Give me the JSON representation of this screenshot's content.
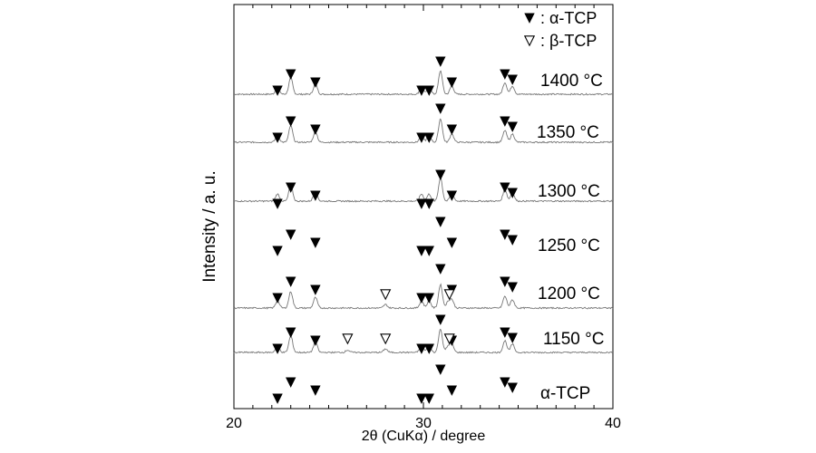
{
  "chart_data": {
    "type": "line",
    "xlabel": "2θ (CuKα) / degree",
    "ylabel": "Intensity / a. u.",
    "xlim": [
      20,
      40
    ],
    "xticks": [
      "20",
      "30",
      "40"
    ],
    "legend": [
      {
        "symbol": "filled-triangle",
        "label": ": α-TCP"
      },
      {
        "symbol": "open-triangle",
        "label": ": β-TCP"
      }
    ],
    "series": [
      {
        "name": "1400 °C",
        "peaks_alpha": [
          22.3,
          23.0,
          24.3,
          29.9,
          30.3,
          30.9,
          31.5,
          34.3,
          34.7
        ],
        "peaks_beta": []
      },
      {
        "name": "1350 °C",
        "peaks_alpha": [
          22.3,
          23.0,
          24.3,
          29.9,
          30.3,
          30.9,
          31.5,
          34.3,
          34.7
        ],
        "peaks_beta": []
      },
      {
        "name": "1300 °C",
        "peaks_alpha": [
          22.3,
          23.0,
          24.3,
          29.9,
          30.3,
          30.9,
          31.5,
          34.3,
          34.7
        ],
        "peaks_beta": []
      },
      {
        "name": "1250 °C",
        "peaks_alpha": [
          22.3,
          23.0,
          24.3,
          29.9,
          30.3,
          30.9,
          31.5,
          34.3,
          34.7
        ],
        "peaks_beta": []
      },
      {
        "name": "1200 °C",
        "peaks_alpha": [
          22.3,
          23.0,
          24.3,
          29.9,
          30.3,
          30.9,
          31.5,
          34.3,
          34.7
        ],
        "peaks_beta": [
          28.0,
          31.3
        ]
      },
      {
        "name": "1150 °C",
        "peaks_alpha": [
          22.3,
          23.0,
          24.3,
          29.9,
          30.3,
          30.9,
          31.5,
          34.3,
          34.7
        ],
        "peaks_beta": [
          26.0,
          28.0,
          31.3
        ]
      },
      {
        "name": "α-TCP",
        "peaks_alpha": [
          22.3,
          23.0,
          24.3,
          29.9,
          30.3,
          30.9,
          31.5,
          34.3,
          34.7
        ],
        "peaks_beta": []
      }
    ],
    "peak_reference_alpha": [
      {
        "x": 22.3,
        "height": 0.3
      },
      {
        "x": 23.0,
        "height": 0.7
      },
      {
        "x": 24.3,
        "height": 0.45
      },
      {
        "x": 29.9,
        "height": 0.3
      },
      {
        "x": 30.3,
        "height": 0.3
      },
      {
        "x": 30.9,
        "height": 1.0
      },
      {
        "x": 31.5,
        "height": 0.35
      },
      {
        "x": 34.3,
        "height": 0.5
      },
      {
        "x": 34.7,
        "height": 0.35
      }
    ],
    "peak_reference_beta": [
      {
        "x": 26.0,
        "height": 0.1
      },
      {
        "x": 28.0,
        "height": 0.15
      },
      {
        "x": 31.3,
        "height": 0.25
      }
    ]
  }
}
